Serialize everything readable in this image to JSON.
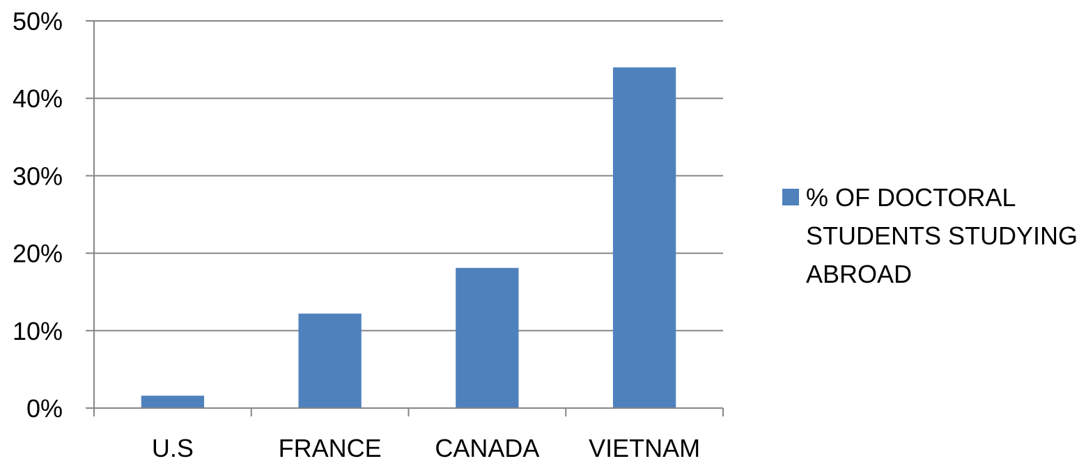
{
  "chart_data": {
    "type": "bar",
    "categories": [
      "U.S",
      "FRANCE",
      "CANADA",
      "VIETNAM"
    ],
    "series": [
      {
        "name": "% OF DOCTORAL STUDENTS STUDYING ABROAD",
        "values": [
          1.6,
          12.2,
          18.1,
          44.0
        ],
        "color": "#4F81BD"
      }
    ],
    "y_ticks": [
      "0%",
      "10%",
      "20%",
      "30%",
      "40%",
      "50%"
    ],
    "ylim": [
      0,
      50
    ],
    "title": "",
    "xlabel": "",
    "ylabel": "",
    "grid": true,
    "legend_position": "right",
    "legend_lines": [
      "% OF DOCTORAL",
      "STUDENTS STUDYING",
      "ABROAD"
    ]
  }
}
